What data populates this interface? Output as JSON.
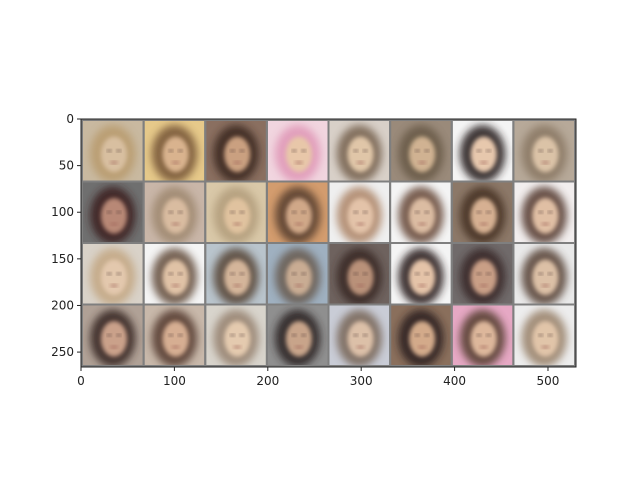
{
  "figure": {
    "x_ticks": [
      "0",
      "100",
      "200",
      "300",
      "400",
      "500"
    ],
    "y_ticks": [
      "0",
      "50",
      "100",
      "150",
      "200",
      "250"
    ],
    "x_range": [
      0,
      530
    ],
    "y_range": [
      0,
      266
    ],
    "grid_rows": 4,
    "grid_cols": 8,
    "image_content": "4 x 8 grid of blurry generated face portraits with gray borders"
  },
  "tiles": [
    {
      "bg": "#c9b9a0",
      "face": "#d8bfa0",
      "hair": "#b99c6f"
    },
    {
      "bg": "#e6c98a",
      "face": "#d9b38e",
      "hair": "#7a5a3a"
    },
    {
      "bg": "#8a6f60",
      "face": "#caa080",
      "hair": "#3e2a22"
    },
    {
      "bg": "#f1d5df",
      "face": "#e8c7a9",
      "hair": "#e09ab8"
    },
    {
      "bg": "#d8d0c8",
      "face": "#e0c6a8",
      "hair": "#7b6855"
    },
    {
      "bg": "#9a8a7a",
      "face": "#d0b292",
      "hair": "#6b5b4a"
    },
    {
      "bg": "#f4f4f4",
      "face": "#e7c8ad",
      "hair": "#2b2220"
    },
    {
      "bg": "#b7a999",
      "face": "#dbc3a7",
      "hair": "#8c7a66"
    },
    {
      "bg": "#6f6f6f",
      "face": "#b88876",
      "hair": "#3c2424"
    },
    {
      "bg": "#c9b6a8",
      "face": "#d9bca0",
      "hair": "#a08a72"
    },
    {
      "bg": "#d9c8a8",
      "face": "#e0c29f",
      "hair": "#b49f7e"
    },
    {
      "bg": "#d39c6e",
      "face": "#d0a888",
      "hair": "#5b4332"
    },
    {
      "bg": "#efefef",
      "face": "#e3c3a9",
      "hair": "#b08a6e"
    },
    {
      "bg": "#f4f4f4",
      "face": "#dbbca2",
      "hair": "#6d4f3f"
    },
    {
      "bg": "#8c7868",
      "face": "#d6b092",
      "hair": "#4a3425"
    },
    {
      "bg": "#f2eeee",
      "face": "#e0bfa4",
      "hair": "#5c4237"
    },
    {
      "bg": "#d9d2c8",
      "face": "#e3c8ad",
      "hair": "#c4a986"
    },
    {
      "bg": "#f4f4f4",
      "face": "#e0c2a6",
      "hair": "#6a5545"
    },
    {
      "bg": "#b9c4cc",
      "face": "#d4b59a",
      "hair": "#5c4b3d"
    },
    {
      "bg": "#9fb0c0",
      "face": "#c9ac93",
      "hair": "#6a5e55"
    },
    {
      "bg": "#6e625e",
      "face": "#b99179",
      "hair": "#3b2a26"
    },
    {
      "bg": "#f4f4f4",
      "face": "#e4c3a8",
      "hair": "#2e2424"
    },
    {
      "bg": "#706a6a",
      "face": "#c99f86",
      "hair": "#3a2929"
    },
    {
      "bg": "#e9e9e9",
      "face": "#dcc0a6",
      "hair": "#5d4a3e"
    },
    {
      "bg": "#b0a196",
      "face": "#caa18a",
      "hair": "#3b2a26"
    },
    {
      "bg": "#c8b8aa",
      "face": "#d6ae92",
      "hair": "#5a4034"
    },
    {
      "bg": "#d8d4cc",
      "face": "#e4caaf",
      "hair": "#9a8674"
    },
    {
      "bg": "#8f8f8f",
      "face": "#c8a48a",
      "hair": "#2f2626"
    },
    {
      "bg": "#c9ccd6",
      "face": "#dcc0a8",
      "hair": "#7c6a5d"
    },
    {
      "bg": "#8a6f5c",
      "face": "#d3aa8a",
      "hair": "#2d2221"
    },
    {
      "bg": "#e6a8c4",
      "face": "#ddb79b",
      "hair": "#5a4236"
    },
    {
      "bg": "#ededed",
      "face": "#e1c5a9",
      "hair": "#9c8670"
    }
  ]
}
